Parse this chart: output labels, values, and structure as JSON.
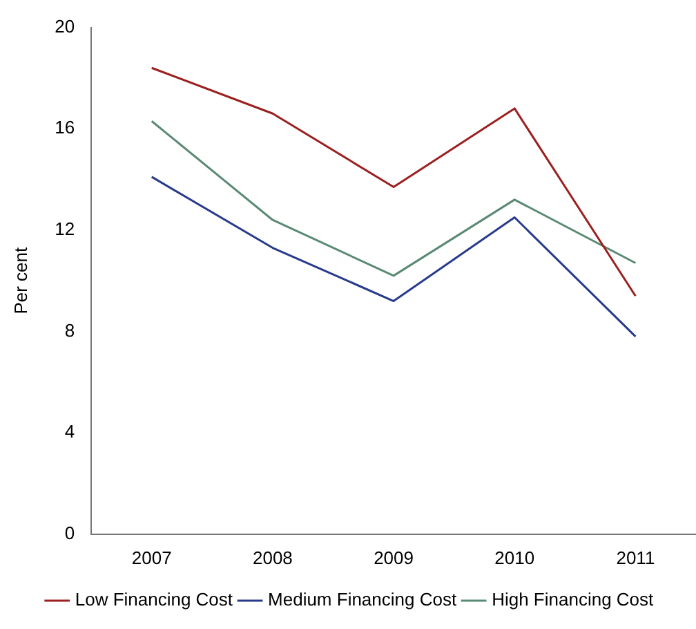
{
  "chart_data": {
    "type": "line",
    "ylabel": "Per cent",
    "categories": [
      "2007",
      "2008",
      "2009",
      "2010",
      "2011"
    ],
    "series": [
      {
        "name": "Low Financing Cost",
        "color": "#9b2020",
        "values": [
          18.4,
          16.6,
          13.7,
          16.8,
          9.4
        ]
      },
      {
        "name": "Medium Financing Cost",
        "color": "#283a8c",
        "values": [
          14.1,
          11.3,
          9.2,
          12.5,
          7.8
        ]
      },
      {
        "name": "High Financing Cost",
        "color": "#5a8a74",
        "values": [
          16.3,
          12.4,
          10.2,
          13.2,
          10.7
        ]
      }
    ],
    "ylim": [
      0,
      20
    ],
    "yticks": [
      0,
      4,
      8,
      12,
      16,
      20
    ],
    "grid": false,
    "legend": "bottom",
    "marker": "none",
    "line_style": "solid"
  }
}
